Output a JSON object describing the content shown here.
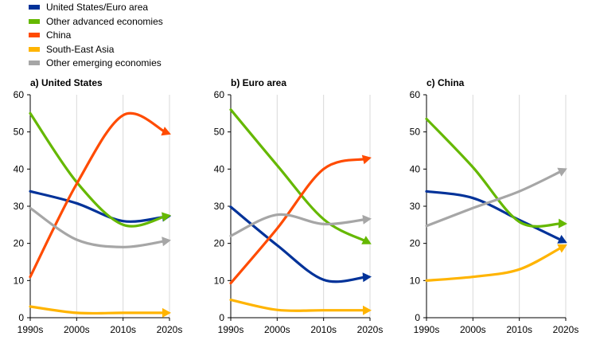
{
  "legend": [
    {
      "name": "United States/Euro area",
      "color": "#003299"
    },
    {
      "name": "Other advanced economies",
      "color": "#65b800"
    },
    {
      "name": "China",
      "color": "#ff4b00"
    },
    {
      "name": "South-East Asia",
      "color": "#ffb400"
    },
    {
      "name": "Other emerging economies",
      "color": "#a6a6a6"
    }
  ],
  "chart_data": [
    {
      "type": "line",
      "title": "a) United States",
      "categories": [
        "1990s",
        "2000s",
        "2010s",
        "2020s"
      ],
      "ylim": [
        0,
        60
      ],
      "yticks": [
        0,
        10,
        20,
        30,
        40,
        50,
        60
      ],
      "series": [
        {
          "name": "United States/Euro area",
          "color": "#003299",
          "values": [
            34,
            30.8,
            26,
            27.3
          ]
        },
        {
          "name": "Other advanced economies",
          "color": "#65b800",
          "values": [
            55,
            36.5,
            25,
            27.5
          ]
        },
        {
          "name": "China",
          "color": "#ff4b00",
          "values": [
            11,
            36,
            54.5,
            49.5
          ]
        },
        {
          "name": "South-East Asia",
          "color": "#ffb400",
          "values": [
            3,
            1.3,
            1.3,
            1.3
          ]
        },
        {
          "name": "Other emerging economies",
          "color": "#a6a6a6",
          "values": [
            29.5,
            21,
            19,
            20.8
          ]
        }
      ]
    },
    {
      "type": "line",
      "title": "b) Euro area",
      "categories": [
        "1990s",
        "2000s",
        "2010s",
        "2020s"
      ],
      "ylim": [
        0,
        60
      ],
      "yticks": [
        0,
        10,
        20,
        30,
        40,
        50,
        60
      ],
      "series": [
        {
          "name": "United States/Euro area",
          "color": "#003299",
          "values": [
            29.8,
            19.5,
            10.2,
            11
          ]
        },
        {
          "name": "Other advanced economies",
          "color": "#65b800",
          "values": [
            56,
            41,
            26.5,
            20
          ]
        },
        {
          "name": "China",
          "color": "#ff4b00",
          "values": [
            9.3,
            24,
            40,
            43
          ]
        },
        {
          "name": "South-East Asia",
          "color": "#ffb400",
          "values": [
            4.8,
            2.1,
            2,
            2
          ]
        },
        {
          "name": "Other emerging economies",
          "color": "#a6a6a6",
          "values": [
            22,
            27.7,
            25.2,
            26.6
          ]
        }
      ]
    },
    {
      "type": "line",
      "title": "c) China",
      "categories": [
        "1990s",
        "2000s",
        "2010s",
        "2020s"
      ],
      "ylim": [
        0,
        60
      ],
      "yticks": [
        0,
        10,
        20,
        30,
        40,
        50,
        60
      ],
      "series": [
        {
          "name": "United States/Euro area",
          "color": "#003299",
          "values": [
            34,
            32.2,
            26.3,
            20.3
          ]
        },
        {
          "name": "Other advanced economies",
          "color": "#65b800",
          "values": [
            53.5,
            40.5,
            25.8,
            25.3
          ]
        },
        {
          "name": "South-East Asia",
          "color": "#ffb400",
          "values": [
            10,
            11,
            13,
            19.5
          ]
        },
        {
          "name": "Other emerging economies",
          "color": "#a6a6a6",
          "values": [
            24.7,
            29.5,
            34,
            40
          ]
        }
      ]
    }
  ]
}
